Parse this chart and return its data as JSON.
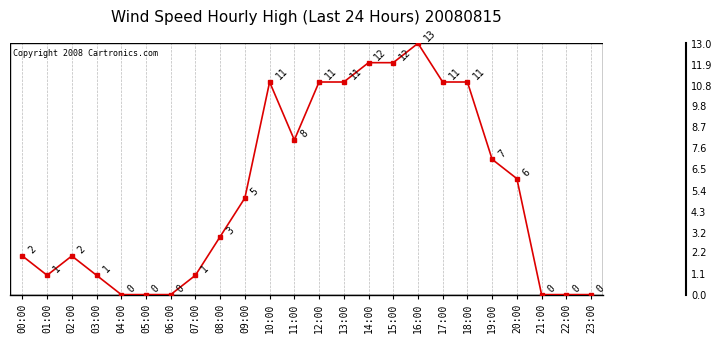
{
  "title": "Wind Speed Hourly High (Last 24 Hours) 20080815",
  "copyright": "Copyright 2008 Cartronics.com",
  "hours": [
    "00:00",
    "01:00",
    "02:00",
    "03:00",
    "04:00",
    "05:00",
    "06:00",
    "07:00",
    "08:00",
    "09:00",
    "10:00",
    "11:00",
    "12:00",
    "13:00",
    "14:00",
    "15:00",
    "16:00",
    "17:00",
    "18:00",
    "19:00",
    "20:00",
    "21:00",
    "22:00",
    "23:00"
  ],
  "values": [
    2,
    1,
    2,
    1,
    0,
    0,
    0,
    1,
    3,
    5,
    11,
    8,
    11,
    11,
    12,
    12,
    13,
    11,
    11,
    7,
    6,
    0,
    0,
    0
  ],
  "ylim": [
    0,
    13.0
  ],
  "yticks": [
    0.0,
    1.1,
    2.2,
    3.2,
    4.3,
    5.4,
    6.5,
    7.6,
    8.7,
    9.8,
    10.8,
    11.9,
    13.0
  ],
  "line_color": "#dd0000",
  "marker_color": "#dd0000",
  "background_color": "#ffffff",
  "plot_bg_color": "#ffffff",
  "grid_color": "#bbbbbb",
  "title_fontsize": 11,
  "label_fontsize": 7,
  "annotation_fontsize": 7
}
